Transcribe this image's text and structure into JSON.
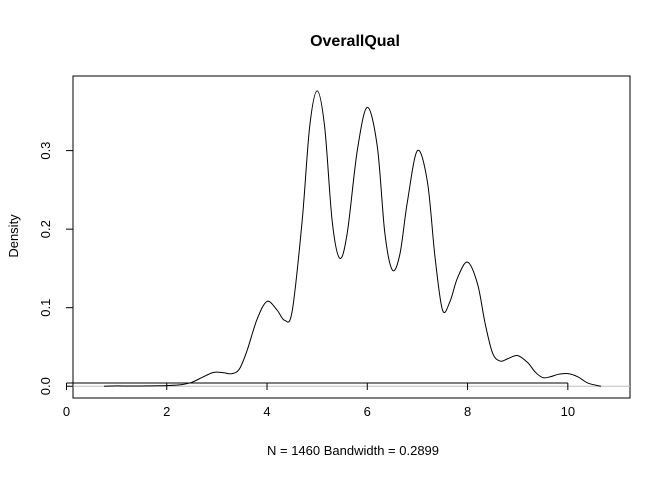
{
  "chart_data": {
    "type": "line",
    "title": "OverallQual",
    "xlabel": "N = 1460   Bandwidth = 0.2899",
    "ylabel": "Density",
    "xlim": [
      0.13,
      11.24
    ],
    "ylim": [
      -0.015,
      0.395
    ],
    "x_ticks": [
      0,
      2,
      4,
      6,
      8,
      10
    ],
    "x_tick_labels": [
      "0",
      "2",
      "4",
      "6",
      "8",
      "10"
    ],
    "y_ticks": [
      0.0,
      0.1,
      0.2,
      0.3
    ],
    "y_tick_labels": [
      "0.0",
      "0.1",
      "0.2",
      "0.3"
    ],
    "baseline": 0,
    "grid": false,
    "series": [
      {
        "name": "density",
        "x": [
          0.75,
          1.0,
          1.4,
          1.7,
          2.0,
          2.3,
          2.5,
          2.7,
          2.9,
          3.0,
          3.15,
          3.3,
          3.45,
          3.6,
          3.8,
          4.0,
          4.2,
          4.35,
          4.5,
          4.7,
          4.85,
          5.0,
          5.15,
          5.3,
          5.45,
          5.6,
          5.8,
          6.0,
          6.2,
          6.35,
          6.5,
          6.65,
          6.8,
          7.0,
          7.2,
          7.35,
          7.5,
          7.65,
          7.8,
          8.0,
          8.2,
          8.35,
          8.5,
          8.65,
          8.8,
          9.0,
          9.2,
          9.35,
          9.5,
          9.65,
          9.8,
          10.0,
          10.2,
          10.4,
          10.66
        ],
        "y": [
          0.0,
          0.0005,
          0.0002,
          0.0005,
          0.0008,
          0.002,
          0.005,
          0.011,
          0.017,
          0.018,
          0.017,
          0.016,
          0.022,
          0.045,
          0.085,
          0.108,
          0.097,
          0.084,
          0.095,
          0.21,
          0.33,
          0.376,
          0.33,
          0.21,
          0.163,
          0.195,
          0.3,
          0.355,
          0.305,
          0.195,
          0.148,
          0.168,
          0.235,
          0.3,
          0.26,
          0.165,
          0.097,
          0.108,
          0.138,
          0.158,
          0.13,
          0.08,
          0.042,
          0.032,
          0.035,
          0.039,
          0.03,
          0.018,
          0.011,
          0.012,
          0.015,
          0.016,
          0.012,
          0.004,
          0.0
        ]
      }
    ]
  }
}
